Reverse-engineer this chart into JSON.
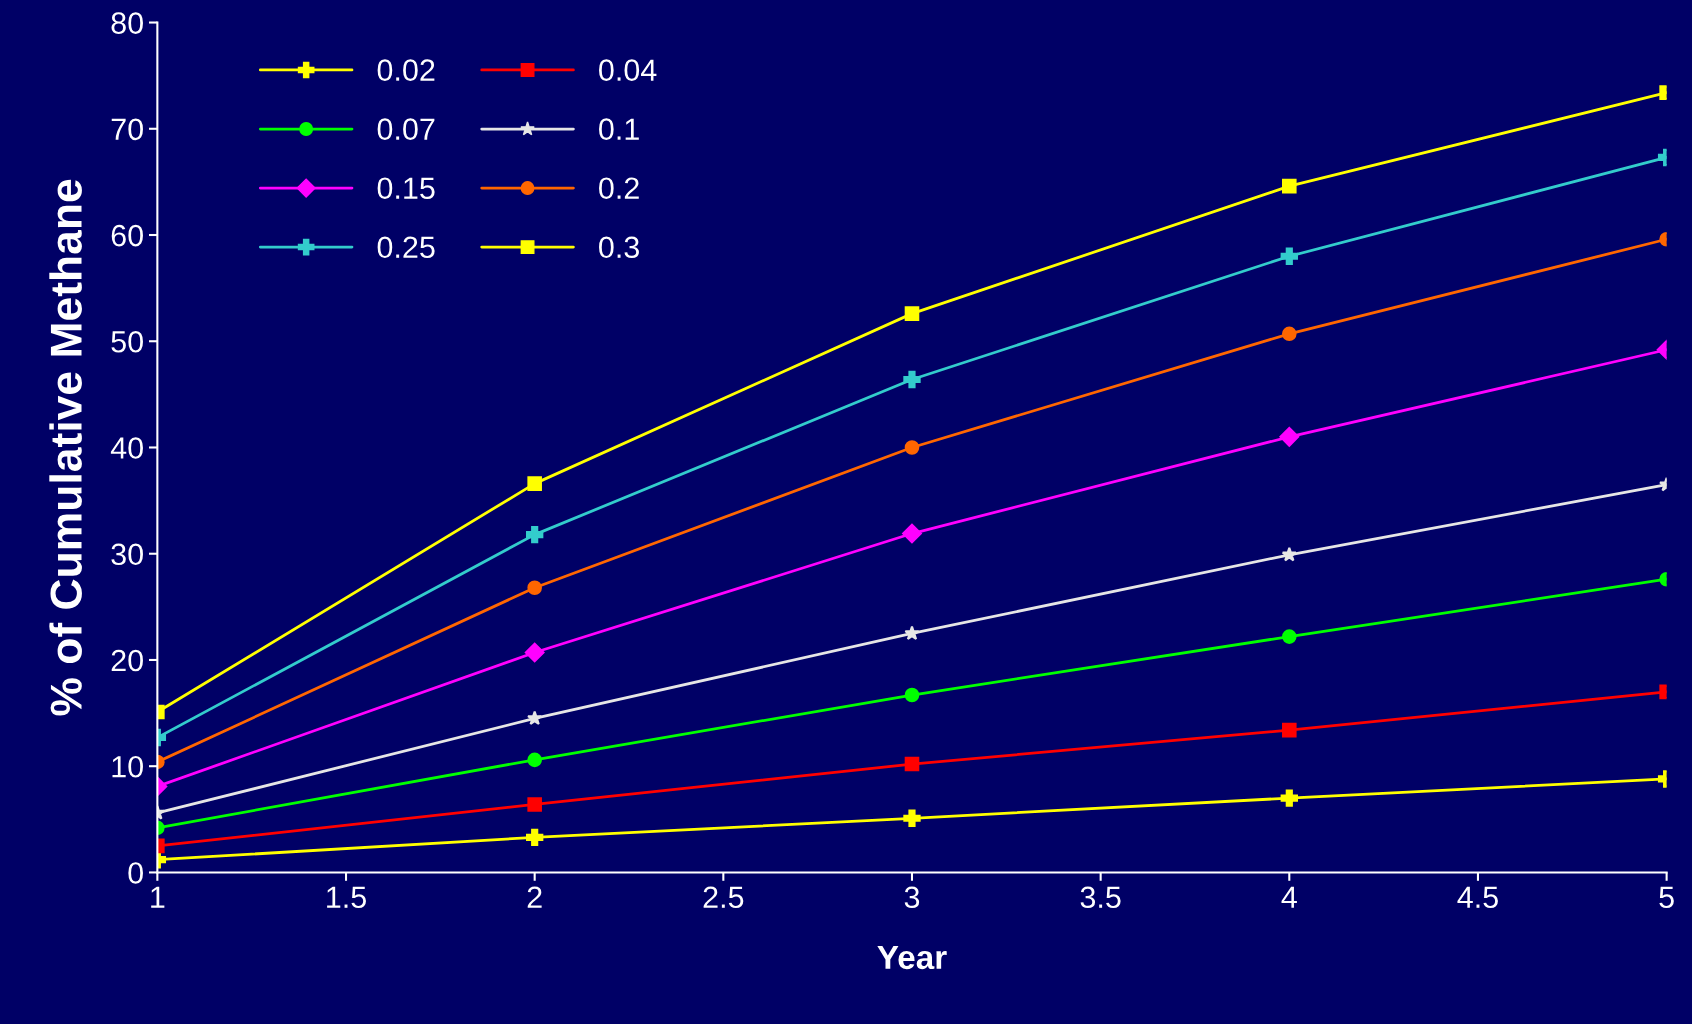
{
  "chart_data": {
    "type": "line",
    "xlabel": "Year",
    "ylabel": "% of Cumulative Methane",
    "x": [
      1,
      2,
      3,
      4,
      5
    ],
    "xlim": [
      1,
      5
    ],
    "xticks": [
      1,
      1.5,
      2,
      2.5,
      3,
      3.5,
      4,
      4.5,
      5
    ],
    "ylim": [
      0,
      80
    ],
    "yticks": [
      0,
      10,
      20,
      30,
      40,
      50,
      60,
      70,
      80
    ],
    "grid": false,
    "legend": "top left",
    "series": [
      {
        "name": "0.02",
        "color": "#ffff00",
        "marker": "cross",
        "values": [
          1.2,
          3.3,
          5.1,
          7.0,
          8.8
        ]
      },
      {
        "name": "0.04",
        "color": "#ff0000",
        "marker": "square",
        "values": [
          2.5,
          6.4,
          10.2,
          13.4,
          17.0
        ]
      },
      {
        "name": "0.07",
        "color": "#00ff00",
        "marker": "circle",
        "values": [
          4.2,
          10.6,
          16.7,
          22.2,
          27.6
        ]
      },
      {
        "name": "0.1",
        "color": "#e6e6e6",
        "marker": "star",
        "values": [
          5.6,
          14.5,
          22.5,
          29.9,
          36.5
        ]
      },
      {
        "name": "0.15",
        "color": "#ff00ff",
        "marker": "diamond",
        "values": [
          8.1,
          20.7,
          31.9,
          41.0,
          49.2
        ]
      },
      {
        "name": "0.2",
        "color": "#ff6600",
        "marker": "circle",
        "values": [
          10.4,
          26.8,
          40.0,
          50.7,
          59.6
        ]
      },
      {
        "name": "0.25",
        "color": "#33cccc",
        "marker": "cross",
        "values": [
          12.7,
          31.8,
          46.4,
          58.0,
          67.3
        ]
      },
      {
        "name": "0.3",
        "color": "#ffff00",
        "marker": "square",
        "values": [
          15.1,
          36.6,
          52.6,
          64.6,
          73.4
        ]
      }
    ]
  }
}
